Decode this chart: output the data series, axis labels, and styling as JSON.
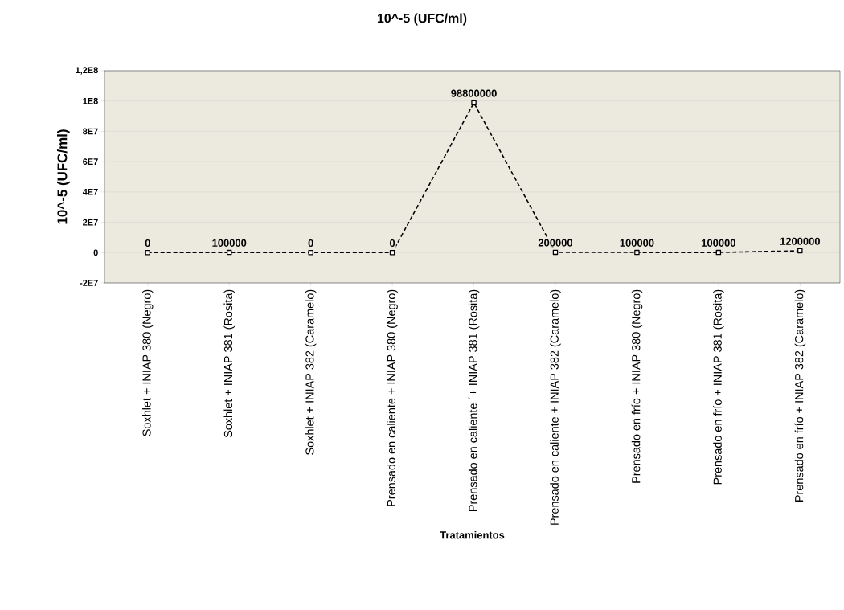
{
  "chart_data": {
    "type": "line",
    "title": "10^-5 (UFC/ml)",
    "xlabel": "Tratamientos",
    "ylabel": "10^-5 (UFC/ml)",
    "categories": [
      "Soxhlet + INIAP 380 (Negro)",
      "Soxhlet + INIAP 381 (Rosita)",
      "Soxhlet + INIAP 382 (Caramelo)",
      "Prensado en caliente + INIAP 380 (Negro)",
      "Prensado en caliente ´+ INIAP 381 (Rosita)",
      "Prensado en caliente + INIAP 382 (Caramelo)",
      "Prensado en frío + INIAP 380 (Negro)",
      "Prensado en frío + INIAP 381 (Rosita)",
      "Prensado en frío + INIAP 382 (Caramelo)"
    ],
    "series": [
      {
        "color": "#000000",
        "values": [
          0,
          100000,
          0,
          0,
          98800000,
          200000,
          100000,
          100000,
          1200000
        ]
      }
    ],
    "ylim": [
      -20000000,
      120000000
    ],
    "yticks": [
      {
        "value": -20000000,
        "label": "-2E7"
      },
      {
        "value": 0,
        "label": "0"
      },
      {
        "value": 20000000,
        "label": "2E7"
      },
      {
        "value": 40000000,
        "label": "4E7"
      },
      {
        "value": 60000000,
        "label": "6E7"
      },
      {
        "value": 80000000,
        "label": "8E7"
      },
      {
        "value": 100000000,
        "label": "1E8"
      },
      {
        "value": 120000000,
        "label": "1,2E8"
      }
    ],
    "grid": "y",
    "marker": "square",
    "line_style": "dashed",
    "data_labels": true
  }
}
